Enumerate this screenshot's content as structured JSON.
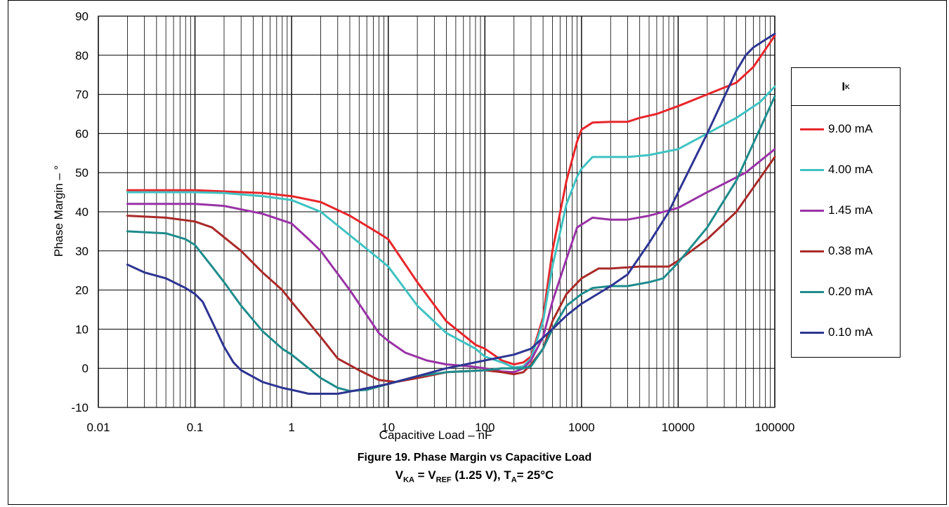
{
  "chart_data": {
    "type": "line",
    "x_scale": "log",
    "xlabel": "Capacitive Load – nF",
    "ylabel": "Phase Margin – °",
    "xlim": [
      0.01,
      100000
    ],
    "ylim": [
      -10,
      90
    ],
    "x_ticks": [
      "0.01",
      "0.1",
      "1",
      "10",
      "100",
      "1000",
      "10000",
      "100000"
    ],
    "y_ticks": [
      "90",
      "80",
      "70",
      "60",
      "50",
      "40",
      "30",
      "20",
      "10",
      "0",
      "-10"
    ],
    "grid": true,
    "legend_title": "I",
    "legend_title_sub": "K",
    "legend_position": "right",
    "series": [
      {
        "name": "9.00 mA",
        "color": "#e8262b",
        "points": [
          [
            0.02,
            45.5
          ],
          [
            0.1,
            45.5
          ],
          [
            0.2,
            45.2
          ],
          [
            0.5,
            44.8
          ],
          [
            1,
            44
          ],
          [
            2,
            42.5
          ],
          [
            4,
            39
          ],
          [
            8,
            34.5
          ],
          [
            10,
            33
          ],
          [
            20,
            22
          ],
          [
            40,
            12
          ],
          [
            80,
            6
          ],
          [
            100,
            5
          ],
          [
            150,
            2
          ],
          [
            200,
            1
          ],
          [
            250,
            1.5
          ],
          [
            300,
            3
          ],
          [
            400,
            13
          ],
          [
            500,
            30
          ],
          [
            700,
            48
          ],
          [
            900,
            58
          ],
          [
            1000,
            61
          ],
          [
            1300,
            62.8
          ],
          [
            2000,
            63
          ],
          [
            3000,
            63
          ],
          [
            4000,
            64
          ],
          [
            6000,
            65
          ],
          [
            10000,
            67
          ],
          [
            20000,
            70
          ],
          [
            40000,
            73
          ],
          [
            60000,
            77
          ],
          [
            100000,
            85
          ]
        ]
      },
      {
        "name": "4.00 mA",
        "color": "#3fc2c2",
        "points": [
          [
            0.02,
            45
          ],
          [
            0.1,
            45
          ],
          [
            0.2,
            44.8
          ],
          [
            0.5,
            44
          ],
          [
            1,
            43
          ],
          [
            2,
            40
          ],
          [
            4,
            34
          ],
          [
            8,
            28
          ],
          [
            10,
            26
          ],
          [
            20,
            16
          ],
          [
            40,
            9
          ],
          [
            80,
            5
          ],
          [
            100,
            3
          ],
          [
            150,
            1.5
          ],
          [
            200,
            0.2
          ],
          [
            250,
            0.5
          ],
          [
            300,
            2.5
          ],
          [
            400,
            12
          ],
          [
            500,
            26
          ],
          [
            700,
            42
          ],
          [
            900,
            49
          ],
          [
            1000,
            51
          ],
          [
            1300,
            54
          ],
          [
            2000,
            54
          ],
          [
            3000,
            54
          ],
          [
            5000,
            54.5
          ],
          [
            10000,
            56
          ],
          [
            20000,
            60
          ],
          [
            40000,
            64
          ],
          [
            70000,
            68
          ],
          [
            100000,
            72
          ]
        ]
      },
      {
        "name": "1.45 mA",
        "color": "#9933a6",
        "points": [
          [
            0.02,
            42
          ],
          [
            0.1,
            42
          ],
          [
            0.2,
            41.5
          ],
          [
            0.5,
            39.5
          ],
          [
            1,
            37
          ],
          [
            1.5,
            33
          ],
          [
            2,
            30
          ],
          [
            4,
            20
          ],
          [
            8,
            9
          ],
          [
            10,
            7
          ],
          [
            15,
            4
          ],
          [
            25,
            2
          ],
          [
            40,
            1
          ],
          [
            70,
            0.5
          ],
          [
            100,
            0
          ],
          [
            150,
            -0.8
          ],
          [
            200,
            -1
          ],
          [
            250,
            0
          ],
          [
            300,
            2
          ],
          [
            400,
            8
          ],
          [
            500,
            17
          ],
          [
            700,
            28
          ],
          [
            900,
            36
          ],
          [
            1300,
            38.5
          ],
          [
            2000,
            38
          ],
          [
            3000,
            38
          ],
          [
            5000,
            39
          ],
          [
            10000,
            41
          ],
          [
            20000,
            45
          ],
          [
            50000,
            50
          ],
          [
            100000,
            56
          ]
        ]
      },
      {
        "name": "0.38 mA",
        "color": "#aa2a2a",
        "points": [
          [
            0.02,
            39
          ],
          [
            0.05,
            38.5
          ],
          [
            0.1,
            37.5
          ],
          [
            0.15,
            36
          ],
          [
            0.2,
            33.5
          ],
          [
            0.3,
            30
          ],
          [
            0.5,
            24.5
          ],
          [
            0.8,
            20
          ],
          [
            1,
            17
          ],
          [
            2,
            8
          ],
          [
            3,
            2.5
          ],
          [
            5,
            -0.5
          ],
          [
            8,
            -3
          ],
          [
            12,
            -3.5
          ],
          [
            20,
            -2.5
          ],
          [
            40,
            -1
          ],
          [
            100,
            -0.5
          ],
          [
            150,
            -1
          ],
          [
            200,
            -1.5
          ],
          [
            250,
            -1
          ],
          [
            300,
            1
          ],
          [
            400,
            5
          ],
          [
            500,
            12
          ],
          [
            700,
            19
          ],
          [
            1000,
            23
          ],
          [
            1500,
            25.5
          ],
          [
            2000,
            25.5
          ],
          [
            4000,
            26
          ],
          [
            8000,
            26
          ],
          [
            10000,
            27.5
          ],
          [
            20000,
            33
          ],
          [
            40000,
            40
          ],
          [
            100000,
            54
          ]
        ]
      },
      {
        "name": "0.20 mA",
        "color": "#1f8c8c",
        "points": [
          [
            0.02,
            35
          ],
          [
            0.05,
            34.5
          ],
          [
            0.08,
            33
          ],
          [
            0.1,
            31.5
          ],
          [
            0.15,
            26
          ],
          [
            0.2,
            22
          ],
          [
            0.3,
            16
          ],
          [
            0.5,
            9.5
          ],
          [
            0.8,
            5
          ],
          [
            1,
            3.5
          ],
          [
            1.5,
            0
          ],
          [
            2,
            -2.5
          ],
          [
            3,
            -5
          ],
          [
            4,
            -5.8
          ],
          [
            6,
            -5.5
          ],
          [
            10,
            -4
          ],
          [
            20,
            -2
          ],
          [
            40,
            -1
          ],
          [
            100,
            -0.5
          ],
          [
            150,
            0
          ],
          [
            200,
            0
          ],
          [
            250,
            0
          ],
          [
            300,
            0.5
          ],
          [
            400,
            5
          ],
          [
            500,
            10
          ],
          [
            700,
            16
          ],
          [
            1000,
            19
          ],
          [
            1300,
            20.5
          ],
          [
            2000,
            21
          ],
          [
            3000,
            21
          ],
          [
            5000,
            22
          ],
          [
            7000,
            23
          ],
          [
            10000,
            27
          ],
          [
            20000,
            36
          ],
          [
            40000,
            48
          ],
          [
            100000,
            69.5
          ]
        ]
      },
      {
        "name": "0.10 mA",
        "color": "#2e3592",
        "points": [
          [
            0.02,
            26.5
          ],
          [
            0.03,
            24.5
          ],
          [
            0.05,
            23
          ],
          [
            0.08,
            20.5
          ],
          [
            0.1,
            19
          ],
          [
            0.12,
            17
          ],
          [
            0.15,
            12
          ],
          [
            0.2,
            5.5
          ],
          [
            0.25,
            1.5
          ],
          [
            0.3,
            -0.5
          ],
          [
            0.5,
            -3.5
          ],
          [
            0.8,
            -5
          ],
          [
            1,
            -5.5
          ],
          [
            1.5,
            -6.5
          ],
          [
            2,
            -6.5
          ],
          [
            3,
            -6.5
          ],
          [
            5,
            -5.5
          ],
          [
            10,
            -4
          ],
          [
            20,
            -2
          ],
          [
            40,
            0
          ],
          [
            100,
            2
          ],
          [
            200,
            3.5
          ],
          [
            300,
            5
          ],
          [
            500,
            10
          ],
          [
            700,
            13.5
          ],
          [
            1000,
            16.5
          ],
          [
            2000,
            21
          ],
          [
            3000,
            24
          ],
          [
            5000,
            32
          ],
          [
            8000,
            40
          ],
          [
            10000,
            45
          ],
          [
            20000,
            60
          ],
          [
            40000,
            76
          ],
          [
            50000,
            80
          ],
          [
            60000,
            82
          ],
          [
            80000,
            84
          ],
          [
            100000,
            85.5
          ]
        ]
      }
    ]
  },
  "caption": {
    "title": "Figure 19. Phase Margin vs Capacitive Load",
    "cond_v": "V",
    "cond_v_sub": "KA",
    "cond_eq": " = V",
    "cond_ref_sub": "REF",
    "cond_mid": " (1.25 V), T",
    "cond_t_sub": "A",
    "cond_end": "= 25°C"
  }
}
